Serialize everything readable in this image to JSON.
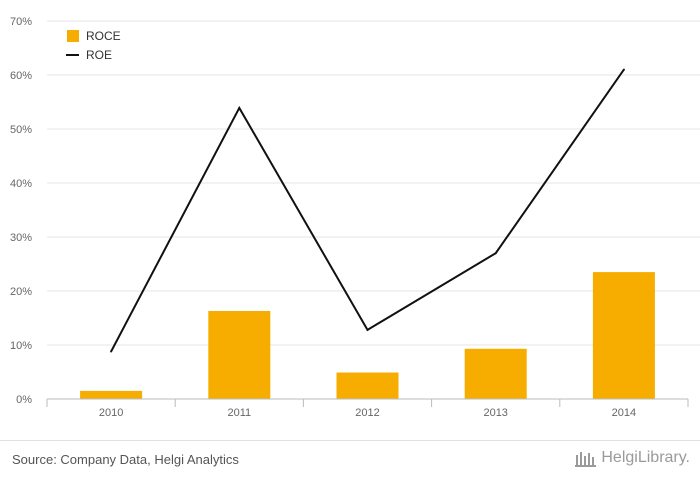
{
  "chart_data": {
    "type": "bar",
    "categories": [
      "2010",
      "2011",
      "2012",
      "2013",
      "2014"
    ],
    "series": [
      {
        "name": "ROCE",
        "type": "bar",
        "color": "#f7ad00",
        "values": [
          1.5,
          16.3,
          4.9,
          9.3,
          23.5
        ]
      },
      {
        "name": "ROE",
        "type": "line",
        "color": "#111111",
        "values": [
          8.8,
          53.9,
          12.8,
          27.0,
          61.0
        ]
      }
    ],
    "ylim": [
      0,
      70
    ],
    "yticks": [
      "0%",
      "10%",
      "20%",
      "30%",
      "40%",
      "50%",
      "60%",
      "70%"
    ],
    "ytick_values": [
      0,
      10,
      20,
      30,
      40,
      50,
      60,
      70
    ],
    "grid": true,
    "legend_position": "top-left"
  },
  "footer": {
    "source": "Source: Company Data, Helgi Analytics",
    "brand": "HelgiLibrary."
  },
  "colors": {
    "bar": "#f7ad00",
    "line": "#111111",
    "grid": "#e6e6e6",
    "axis": "#bbbbbb"
  }
}
